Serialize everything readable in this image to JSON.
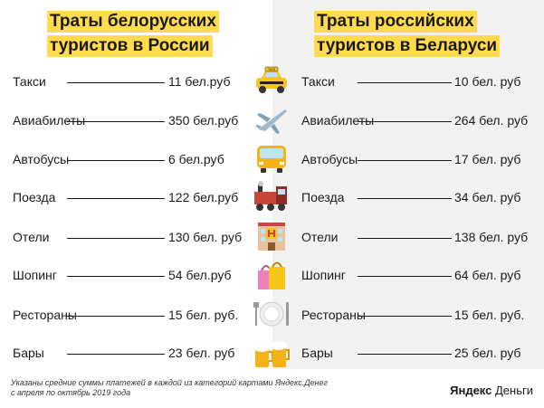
{
  "left": {
    "title_line1": "Траты белорусских",
    "title_line2": "туристов в России",
    "rows": [
      {
        "label": "Такси",
        "value": "11 бел.руб"
      },
      {
        "label": "Авиабилеты",
        "value": "350 бел.руб"
      },
      {
        "label": "Автобусы",
        "value": "6 бел.руб"
      },
      {
        "label": "Поезда",
        "value": "122 бел.руб"
      },
      {
        "label": "Отели",
        "value": "130 бел. руб"
      },
      {
        "label": "Шопинг",
        "value": "54 бел.руб"
      },
      {
        "label": "Рестораны",
        "value": "15 бел. руб."
      },
      {
        "label": "Бары",
        "value": "23 бел. руб"
      }
    ]
  },
  "right": {
    "title_line1": "Траты российских",
    "title_line2": "туристов в Беларуси",
    "rows": [
      {
        "label": "Такси",
        "value": "10 бел. руб"
      },
      {
        "label": "Авиабилеты",
        "value": "264 бел. руб"
      },
      {
        "label": "Автобусы",
        "value": "17 бел. руб"
      },
      {
        "label": "Поезда",
        "value": "34 бел. руб"
      },
      {
        "label": "Отели",
        "value": "138 бел. руб"
      },
      {
        "label": "Шопинг",
        "value": "64 бел. руб"
      },
      {
        "label": "Рестораны",
        "value": "15 бел. руб."
      },
      {
        "label": "Бары",
        "value": "25 бел. руб"
      }
    ]
  },
  "icons": [
    "taxi-icon",
    "airplane-icon",
    "bus-icon",
    "train-icon",
    "hotel-icon",
    "shopping-bags-icon",
    "plate-cutlery-icon",
    "beer-mugs-icon"
  ],
  "taxi_sign": "TAXI",
  "footer": {
    "note_line1": "Указаны средние суммы платежей в каждой из категорий картами Яндекс.Денег",
    "note_line2": "с апреля по октябрь 2019 года",
    "brand_bold": "Яндекс",
    "brand_regular": "Деньги"
  },
  "colors": {
    "accent": "#ffdb4d",
    "right_panel": "#f2f2f2"
  }
}
